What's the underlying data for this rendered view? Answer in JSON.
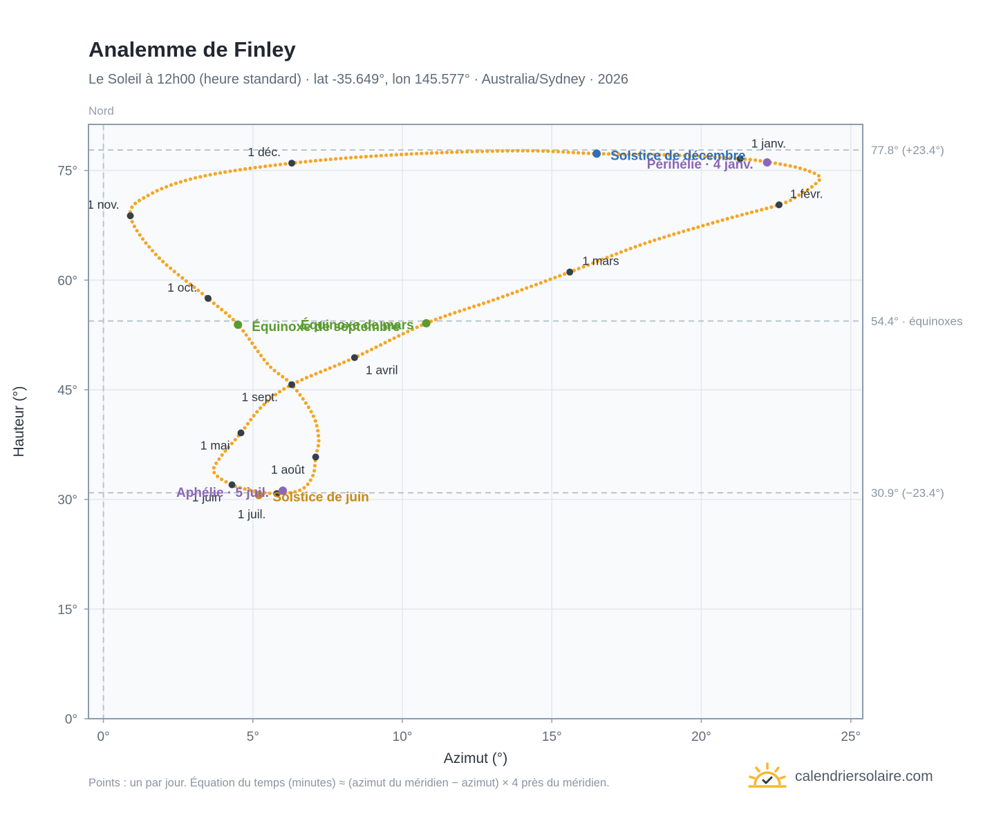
{
  "title": "Analemme de Finley",
  "subtitle": "Le Soleil à 12h00 (heure standard) · lat -35.649°, lon 145.577° · Australia/Sydney · 2026",
  "direction_label": "Nord",
  "footnote": "Points : un par jour. Équation du temps (minutes) ≈ (azimut du méridien − azimut) × 4 près du méridien.",
  "brand": {
    "name": "calendriersolaire.com",
    "logo_icon": "sun-check-icon",
    "logo_color": "#f5b82e"
  },
  "colors": {
    "curve": "#f5a623",
    "month_marker": "#36404b",
    "equinox": "#5b9a2f",
    "december_solstice": "#2f6fb8",
    "june_solstice": "#c98b12",
    "apsides": "#8c66b8",
    "reference_lines": "#b9c4ce",
    "plot_background": "#f8fafc"
  },
  "chart_data": {
    "type": "scatter",
    "title": "Analemme de Finley",
    "xlabel": "Azimut (°)",
    "ylabel": "Hauteur (°)",
    "xlim": [
      -0.5,
      25.4
    ],
    "ylim": [
      0,
      81.3
    ],
    "x_ticks": [
      0,
      5,
      10,
      15,
      20,
      25
    ],
    "y_ticks": [
      0,
      15,
      30,
      45,
      60,
      75
    ],
    "x_tick_labels": [
      "0°",
      "5°",
      "10°",
      "15°",
      "20°",
      "25°"
    ],
    "y_tick_labels": [
      "0°",
      "15°",
      "30°",
      "45°",
      "60°",
      "75°"
    ],
    "grid": true,
    "vertical_reference_x": 0,
    "horizontal_references": [
      {
        "y": 77.8,
        "label": "77.8° (+23.4°)"
      },
      {
        "y": 54.4,
        "label": "54.4° · équinoxes"
      },
      {
        "y": 30.9,
        "label": "30.9° (−23.4°)"
      }
    ],
    "month_markers": [
      {
        "label": "1 janv.",
        "x": 21.3,
        "y": 76.6
      },
      {
        "label": "1 févr.",
        "x": 22.6,
        "y": 70.3
      },
      {
        "label": "1 mars",
        "x": 15.6,
        "y": 61.1
      },
      {
        "label": "1 avril",
        "x": 8.4,
        "y": 49.4
      },
      {
        "label": "1 mai",
        "x": 4.6,
        "y": 39.1
      },
      {
        "label": "1 juin",
        "x": 4.3,
        "y": 32.0
      },
      {
        "label": "1 juil.",
        "x": 5.8,
        "y": 30.8
      },
      {
        "label": "1 août",
        "x": 7.1,
        "y": 35.8
      },
      {
        "label": "1 sept.",
        "x": 6.3,
        "y": 45.7
      },
      {
        "label": "1 oct.",
        "x": 3.5,
        "y": 57.5
      },
      {
        "label": "1 nov.",
        "x": 0.9,
        "y": 68.8
      },
      {
        "label": "1 déc.",
        "x": 6.3,
        "y": 76.0
      }
    ],
    "events": [
      {
        "label": "Solstice de décembre",
        "x": 16.5,
        "y": 77.3,
        "type": "december_solstice"
      },
      {
        "label": "Périhélie · 4 janv.",
        "x": 22.2,
        "y": 76.1,
        "type": "apsides"
      },
      {
        "label": "Équinoxe de mars",
        "x": 10.8,
        "y": 54.1,
        "type": "equinox"
      },
      {
        "label": "Équinoxe de septembre",
        "x": 4.5,
        "y": 53.9,
        "type": "equinox"
      },
      {
        "label": "Solstice de juin",
        "x": 5.2,
        "y": 30.6,
        "type": "june_solstice"
      },
      {
        "label": "Aphélie · 5 juil.",
        "x": 6.0,
        "y": 31.2,
        "type": "apsides"
      }
    ],
    "curve_path": [
      [
        21.3,
        76.6
      ],
      [
        22.3,
        76.1
      ],
      [
        23.3,
        75.3
      ],
      [
        23.95,
        74.2
      ],
      [
        23.8,
        73.1
      ],
      [
        23.3,
        71.7
      ],
      [
        22.6,
        70.3
      ],
      [
        20.7,
        68.2
      ],
      [
        18.1,
        65.0
      ],
      [
        15.6,
        61.1
      ],
      [
        13.2,
        57.5
      ],
      [
        10.8,
        54.1
      ],
      [
        8.4,
        49.4
      ],
      [
        6.3,
        45.7
      ],
      [
        5.3,
        42.7
      ],
      [
        4.6,
        39.1
      ],
      [
        3.9,
        35.7
      ],
      [
        3.7,
        33.7
      ],
      [
        4.3,
        32.0
      ],
      [
        5.0,
        31.2
      ],
      [
        5.8,
        30.8
      ],
      [
        6.6,
        31.3
      ],
      [
        7.0,
        33.2
      ],
      [
        7.1,
        35.8
      ],
      [
        7.2,
        38.3
      ],
      [
        7.0,
        41.6
      ],
      [
        6.3,
        45.7
      ],
      [
        5.5,
        48.5
      ],
      [
        4.5,
        53.9
      ],
      [
        3.5,
        57.5
      ],
      [
        1.8,
        63.3
      ],
      [
        0.9,
        68.8
      ],
      [
        1.5,
        71.6
      ],
      [
        3.2,
        74.1
      ],
      [
        6.3,
        76.0
      ],
      [
        10.0,
        77.2
      ],
      [
        14.0,
        77.7
      ],
      [
        16.5,
        77.3
      ],
      [
        19.0,
        77.1
      ],
      [
        21.3,
        76.6
      ]
    ]
  }
}
